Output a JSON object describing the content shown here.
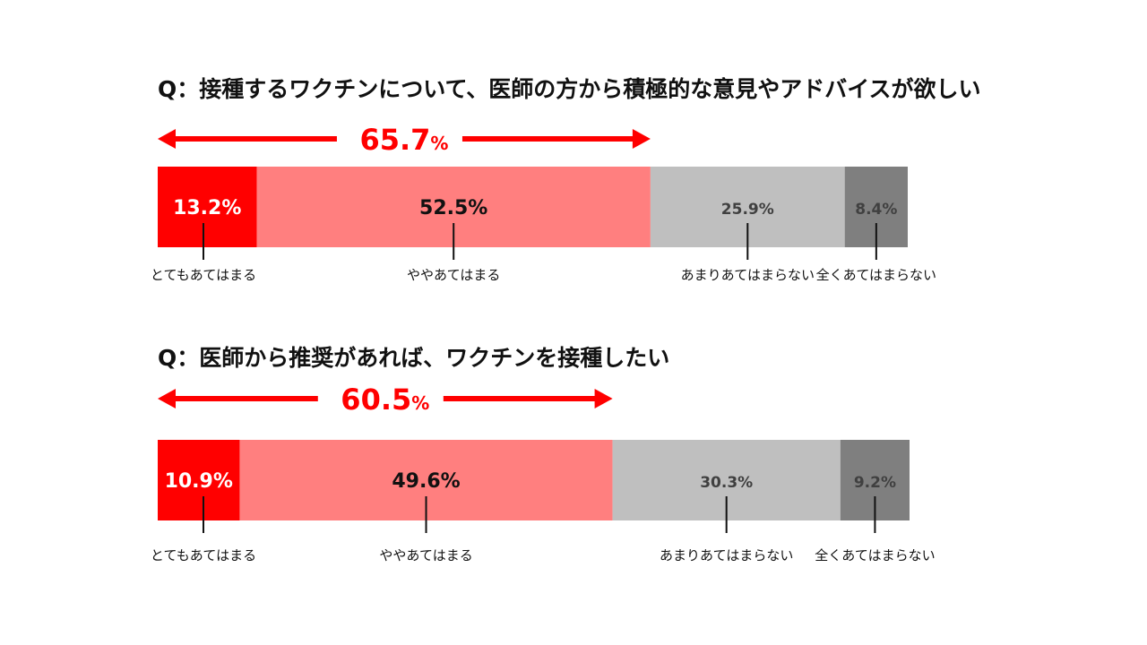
{
  "colors": {
    "accent": "#ff0000",
    "seg_strong": "#ff0000",
    "seg_somewhat": "#ff7f7f",
    "seg_not_much": "#bfbfbf",
    "seg_not_at_all": "#7f7f7f",
    "label_dark": "#111111",
    "label_light": "#ffffff",
    "label_gray": "#404040"
  },
  "chart_data": [
    {
      "type": "bar",
      "orientation": "horizontal-stacked",
      "title": "Q：接種するワクチンについて、医師の方から積極的な意見やアドバイスが欲しい",
      "categories": [
        "とてもあてはまる",
        "ややあてはまる",
        "あまりあてはまらない",
        "全くあてはまらない"
      ],
      "values": [
        13.2,
        52.5,
        25.9,
        8.4
      ],
      "value_labels": [
        "13.2%",
        "52.5%",
        "25.9%",
        "8.4%"
      ],
      "highlight_value": "65.7",
      "highlight_unit": "%",
      "xlim": [
        0,
        100
      ]
    },
    {
      "type": "bar",
      "orientation": "horizontal-stacked",
      "title": "Q：医師から推奨があれば、ワクチンを接種したい",
      "categories": [
        "とてもあてはまる",
        "ややあてはまる",
        "あまりあてはまらない",
        "全くあてはまらない"
      ],
      "values": [
        10.9,
        49.6,
        30.3,
        9.2
      ],
      "value_labels": [
        "10.9%",
        "49.6%",
        "30.3%",
        "9.2%"
      ],
      "highlight_value": "60.5",
      "highlight_unit": "%",
      "xlim": [
        0,
        100
      ]
    }
  ]
}
